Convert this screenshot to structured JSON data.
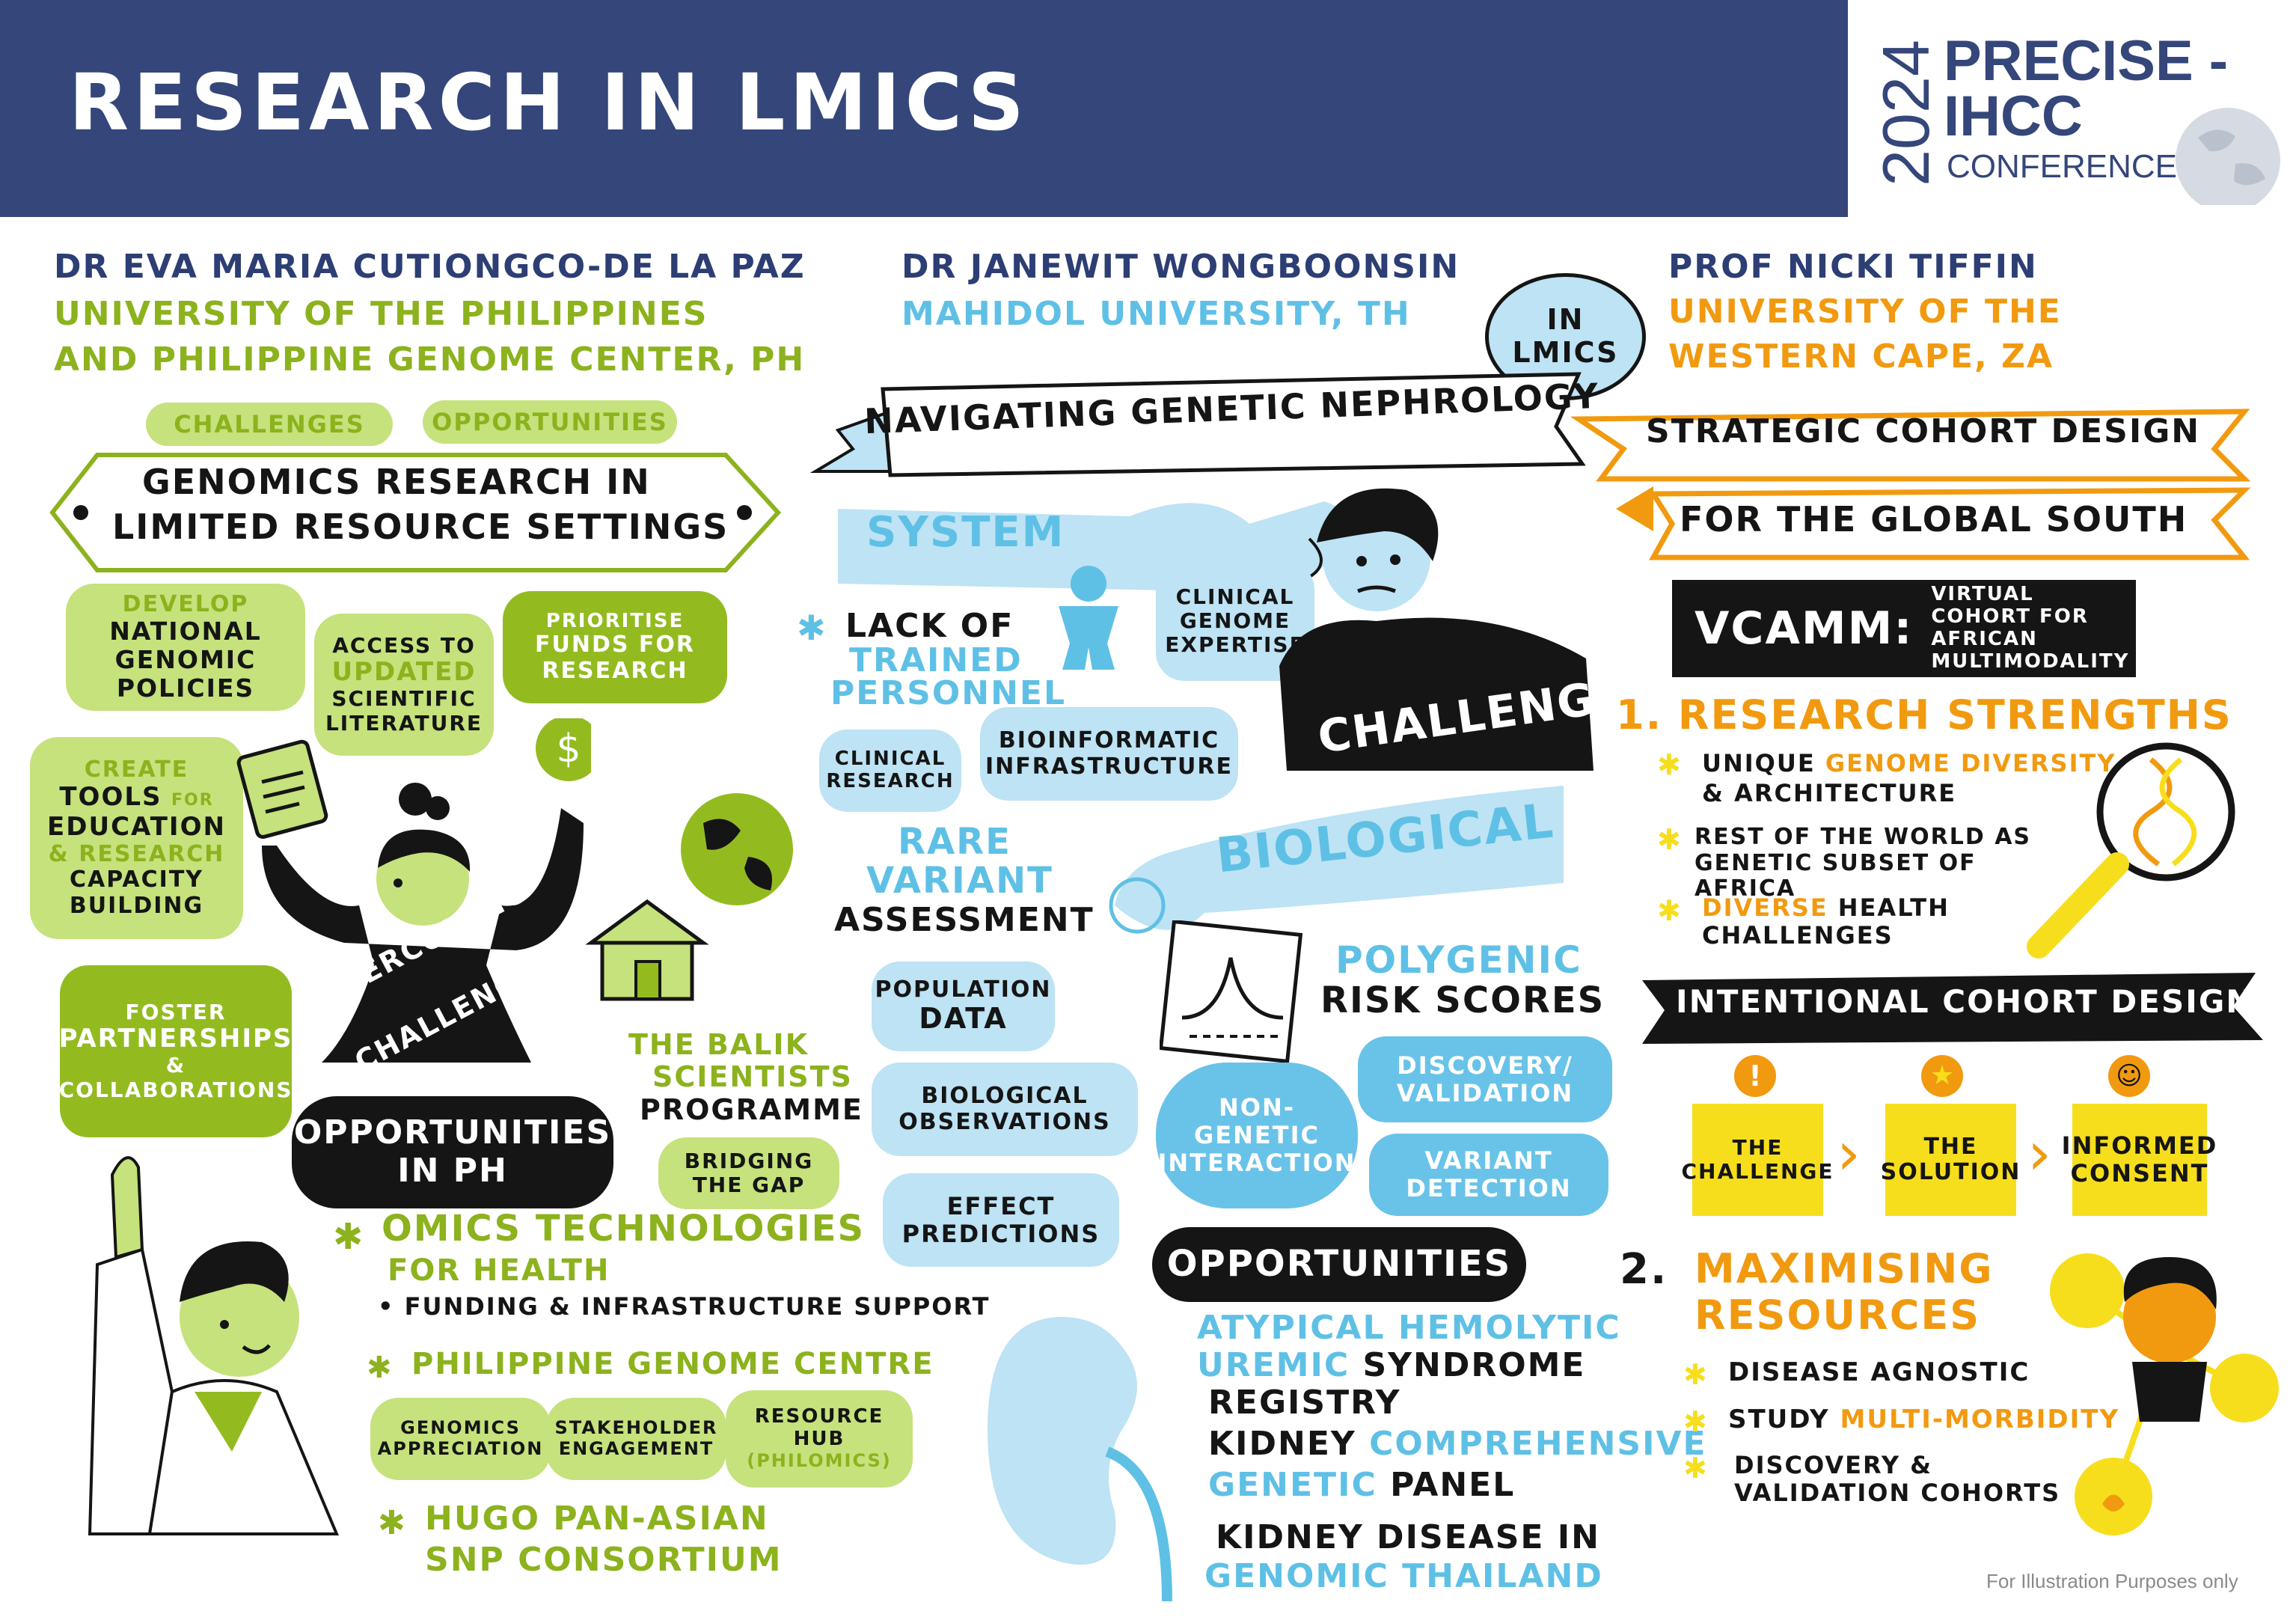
{
  "header": {
    "title": "RESEARCH IN LMICS",
    "logo_year": "2024",
    "logo_line1": "PRECISE -",
    "logo_line2": "IHCC",
    "logo_line3": "CONFERENCE"
  },
  "left": {
    "speaker": "DR EVA MARIA CUTIONGCO-DE LA PAZ",
    "affil1": "UNIVERSITY OF THE PHILIPPINES",
    "affil2": "AND PHILIPPINE GENOME CENTER, PH",
    "tag1": "CHALLENGES",
    "tag2": "OPPORTUNITIES",
    "banner1": "GENOMICS RESEARCH IN",
    "banner2": "LIMITED RESOURCE SETTINGS",
    "b1_top": "DEVELOP",
    "b1_mid": "NATIONAL GENOMIC POLICIES",
    "b2_a": "ACCESS TO",
    "b2_b": "UPDATED",
    "b2_c": "SCIENTIFIC LITERATURE",
    "b3_a": "PRIORITISE",
    "b3_b": "FUNDS FOR RESEARCH",
    "b4_a": "CREATE",
    "b4_b": "TOOLS",
    "b4_c": "FOR",
    "b4_d": "EDUCATION",
    "b4_e": "& RESEARCH",
    "b4_f": "CAPACITY BUILDING",
    "overcoming1": "OVERCOMING",
    "overcoming2": "CHALLENGES",
    "b5_a": "FOSTER",
    "b5_b": "PARTNERSHIPS",
    "b5_c": "&",
    "b5_d": "COLLABORATIONS",
    "balik1": "THE BALIK",
    "balik2": "SCIENTISTS",
    "balik3": "PROGRAMME",
    "bridging": "BRIDGING THE GAP",
    "opp_ph1": "OPPORTUNITIES",
    "opp_ph2": "IN PH",
    "omics1": "OMICS TECHNOLOGIES",
    "omics2": "FOR HEALTH",
    "omics3": "• FUNDING & INFRASTRUCTURE SUPPORT",
    "pgc": "PHILIPPINE GENOME CENTRE",
    "pgc_b1": "GENOMICS APPRECIATION",
    "pgc_b2": "STAKEHOLDER ENGAGEMENT",
    "pgc_b3a": "RESOURCE HUB",
    "pgc_b3b": "(PHILOMICS)",
    "hugo1": "HUGO PAN-ASIAN",
    "hugo2": "SNP CONSORTIUM"
  },
  "middle": {
    "speaker": "DR JANEWIT WONGBOONSIN",
    "affil": "MAHIDOL UNIVERSITY, TH",
    "banner": "NAVIGATING GENETIC NEPHROLOGY",
    "in_lmics1": "IN",
    "in_lmics2": "LMICS",
    "system": "SYSTEM",
    "lack1": "LACK OF",
    "lack2": "TRAINED",
    "lack3": "PERSONNEL",
    "clin_genome": "CLINICAL GENOME EXPERTISE",
    "clin_research": "CLINICAL RESEARCH",
    "bioinfo": "BIOINFORMATIC INFRASTRUCTURE",
    "challenges": "CHALLENGES",
    "biological": "BIOLOGICAL",
    "rare1": "RARE",
    "rare2": "VARIANT",
    "rare3": "ASSESSMENT",
    "pop_data1": "POPULATION",
    "pop_data2": "DATA",
    "bio_obs": "BIOLOGICAL OBSERVATIONS",
    "effect": "EFFECT PREDICTIONS",
    "poly1": "POLYGENIC",
    "poly2": "RISK SCORES",
    "nongenetic": "NON-GENETIC INTERACTION",
    "discovery": "DISCOVERY/ VALIDATION",
    "variant_det": "VARIANT DETECTION",
    "opportunities": "OPPORTUNITIES",
    "o1a": "ATYPICAL HEMOLYTIC",
    "o1b": "UREMIC",
    "o1c": "SYNDROME",
    "o1d": "REGISTRY",
    "o2a": "KIDNEY",
    "o2b": "COMPREHENSIVE",
    "o2c": "GENETIC",
    "o2d": "PANEL",
    "o3a": "KIDNEY DISEASE IN",
    "o3b": "GENOMIC THAILAND"
  },
  "right": {
    "speaker": "PROF NICKI TIFFIN",
    "affil1": "UNIVERSITY OF THE",
    "affil2": "WESTERN CAPE, ZA",
    "banner1": "STRATEGIC COHORT DESIGN",
    "banner2": "FOR THE GLOBAL SOUTH",
    "vcamm": "VCAMM:",
    "vcamm_desc": "VIRTUAL COHORT FOR AFRICAN MULTIMODALITY",
    "rs_title": "1. RESEARCH STRENGTHS",
    "rs1a": "UNIQUE",
    "rs1b": "GENOME DIVERSITY",
    "rs1c": "& ARCHITECTURE",
    "rs2": "REST OF THE WORLD AS GENETIC SUBSET OF AFRICA",
    "rs3a": "DIVERSE",
    "rs3b": "HEALTH CHALLENGES",
    "icd": "INTENTIONAL COHORT DESIGN",
    "box1": "THE CHALLENGE",
    "box2": "THE SOLUTION",
    "box3": "INFORMED CONSENT",
    "mr_num": "2.",
    "mr_title": "MAXIMISING RESOURCES",
    "mr1": "DISEASE AGNOSTIC",
    "mr2a": "STUDY",
    "mr2b": "MULTI-MORBIDITY",
    "mr3": "DISCOVERY & VALIDATION COHORTS"
  },
  "footer": {
    "note": "For Illustration Purposes only"
  },
  "colors": {
    "navy": "#34467a",
    "green": "#8cb21d",
    "blue": "#5fc0e6",
    "orange": "#f19a10",
    "yellow": "#f7de1d"
  }
}
